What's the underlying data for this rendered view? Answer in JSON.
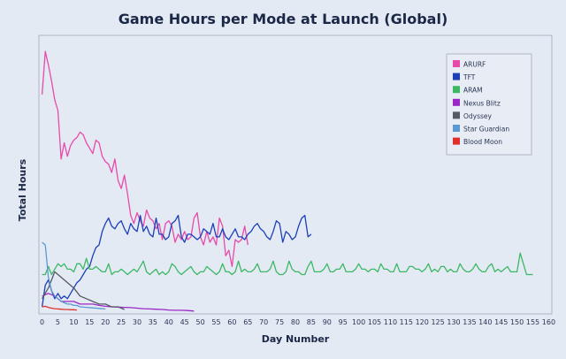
{
  "chart_data": {
    "type": "line",
    "title": "Game Hours per Mode at Launch (Global)",
    "xlabel": "Day Number",
    "ylabel": "Total Hours",
    "xlim": [
      -1,
      161
    ],
    "ylim": [
      0,
      100
    ],
    "y_ticks_visible": false,
    "grid": false,
    "legend_position": "top-right",
    "x_ticks": [
      "0",
      "5",
      "10",
      "15",
      "20",
      "25",
      "30",
      "35",
      "40",
      "45",
      "50",
      "55",
      "60",
      "65",
      "70",
      "75",
      "80",
      "85",
      "90",
      "95",
      "100",
      "105",
      "110",
      "115",
      "120",
      "125",
      "130",
      "135",
      "140",
      "145",
      "150",
      "155",
      "160"
    ],
    "series": [
      {
        "name": "ARURF",
        "color": "#e84aa9",
        "x": [
          0,
          1,
          2,
          3,
          4,
          5,
          6,
          7,
          8,
          9,
          10,
          11,
          12,
          13,
          14,
          15,
          16,
          17,
          18,
          19,
          20,
          21,
          22,
          23,
          24,
          25,
          26,
          27,
          28,
          29,
          30,
          31,
          32,
          33,
          34,
          35,
          36,
          37,
          38,
          39,
          40,
          41,
          42,
          43,
          44,
          45,
          46,
          47,
          48,
          49,
          50,
          51,
          52,
          53,
          54,
          55,
          56,
          57,
          58,
          59,
          60,
          61,
          62,
          63,
          64,
          65
        ],
        "y": [
          80,
          96,
          91,
          85,
          78,
          74,
          56,
          62,
          57,
          61,
          63,
          64,
          66,
          65,
          62,
          60,
          58,
          63,
          62,
          57,
          55,
          54,
          51,
          56,
          48,
          45,
          50,
          43,
          35,
          32,
          36,
          33,
          31,
          37,
          34,
          33,
          30,
          32,
          26,
          32,
          33,
          31,
          25,
          28,
          26,
          29,
          26,
          27,
          34,
          36,
          27,
          24,
          29,
          25,
          27,
          24,
          34,
          31,
          20,
          22,
          16,
          26,
          25,
          26,
          31,
          24
        ]
      },
      {
        "name": "TFT",
        "color": "#1c3fb8",
        "x": [
          0,
          1,
          2,
          3,
          4,
          5,
          6,
          7,
          8,
          9,
          10,
          11,
          12,
          13,
          14,
          15,
          16,
          17,
          18,
          19,
          20,
          21,
          22,
          23,
          24,
          25,
          26,
          27,
          28,
          29,
          30,
          31,
          32,
          33,
          34,
          35,
          36,
          37,
          38,
          39,
          40,
          41,
          42,
          43,
          44,
          45,
          46,
          47,
          48,
          49,
          50,
          51,
          52,
          53,
          54,
          55,
          56,
          57,
          58,
          59,
          60,
          61,
          62,
          63,
          64,
          65,
          66,
          67,
          68,
          69,
          70,
          71,
          72,
          73,
          74,
          75,
          76,
          77,
          78,
          79,
          80,
          81,
          82,
          83,
          84,
          85
        ],
        "y": [
          1,
          9,
          11,
          7,
          4,
          6,
          4,
          5,
          4,
          6,
          8,
          10,
          11,
          13,
          15,
          16,
          20,
          23,
          24,
          29,
          32,
          34,
          31,
          30,
          32,
          33,
          30,
          28,
          32,
          30,
          29,
          35,
          29,
          31,
          28,
          27,
          34,
          28,
          28,
          26,
          27,
          32,
          33,
          35,
          27,
          25,
          28,
          28,
          27,
          26,
          27,
          30,
          29,
          28,
          32,
          27,
          27,
          30,
          27,
          26,
          28,
          30,
          27,
          27,
          26,
          28,
          29,
          31,
          32,
          30,
          29,
          27,
          26,
          29,
          33,
          32,
          25,
          29,
          28,
          26,
          27,
          31,
          34,
          35,
          27,
          28
        ]
      },
      {
        "name": "ARAM",
        "color": "#3cb865",
        "x": [
          0,
          1,
          2,
          3,
          4,
          5,
          6,
          7,
          8,
          9,
          10,
          11,
          12,
          13,
          14,
          15,
          16,
          17,
          18,
          19,
          20,
          21,
          22,
          23,
          24,
          25,
          26,
          27,
          28,
          29,
          30,
          31,
          32,
          33,
          34,
          35,
          36,
          37,
          38,
          39,
          40,
          41,
          42,
          43,
          44,
          45,
          46,
          47,
          48,
          49,
          50,
          51,
          52,
          53,
          54,
          55,
          56,
          57,
          58,
          59,
          60,
          61,
          62,
          63,
          64,
          65,
          66,
          67,
          68,
          69,
          70,
          71,
          72,
          73,
          74,
          75,
          76,
          77,
          78,
          79,
          80,
          81,
          82,
          83,
          84,
          85,
          86,
          87,
          88,
          89,
          90,
          91,
          92,
          93,
          94,
          95,
          96,
          97,
          98,
          99,
          100,
          101,
          102,
          103,
          104,
          105,
          106,
          107,
          108,
          109,
          110,
          111,
          112,
          113,
          114,
          115,
          116,
          117,
          118,
          119,
          120,
          121,
          122,
          123,
          124,
          125,
          126,
          127,
          128,
          129,
          130,
          131,
          132,
          133,
          134,
          135,
          136,
          137,
          138,
          139,
          140,
          141,
          142,
          143,
          144,
          145,
          146,
          147,
          148,
          149,
          150,
          151,
          152,
          153,
          154,
          155
        ],
        "y": [
          13,
          13,
          16,
          13,
          15,
          17,
          16,
          17,
          15,
          15,
          14,
          17,
          17,
          15,
          19,
          15,
          15,
          16,
          15,
          14,
          14,
          17,
          13,
          14,
          14,
          15,
          14,
          13,
          14,
          15,
          14,
          16,
          18,
          14,
          13,
          14,
          15,
          13,
          14,
          13,
          14,
          17,
          16,
          14,
          13,
          14,
          15,
          16,
          14,
          13,
          14,
          14,
          16,
          15,
          14,
          13,
          14,
          17,
          14,
          14,
          13,
          14,
          18,
          14,
          15,
          14,
          14,
          15,
          17,
          14,
          14,
          14,
          15,
          18,
          14,
          13,
          13,
          14,
          18,
          15,
          14,
          14,
          13,
          13,
          16,
          18,
          14,
          14,
          14,
          15,
          17,
          14,
          14,
          15,
          15,
          17,
          14,
          14,
          14,
          15,
          17,
          15,
          15,
          14,
          15,
          15,
          14,
          17,
          15,
          15,
          14,
          14,
          17,
          14,
          14,
          14,
          16,
          16,
          15,
          15,
          14,
          15,
          17,
          14,
          15,
          14,
          16,
          16,
          14,
          15,
          14,
          14,
          17,
          15,
          14,
          14,
          15,
          17,
          15,
          14,
          14,
          16,
          17,
          14,
          15,
          14,
          15,
          16,
          14,
          14,
          14,
          21,
          17,
          13,
          13,
          13
        ]
      },
      {
        "name": "Nexus Blitz",
        "color": "#9b27c7",
        "x": [
          0,
          2,
          4,
          6,
          8,
          10,
          12,
          14,
          16,
          18,
          20,
          22,
          24,
          26,
          28,
          30,
          32,
          34,
          36,
          38,
          40,
          42,
          44,
          46,
          48
        ],
        "y": [
          5,
          6,
          5,
          3,
          3,
          3,
          2,
          2,
          2,
          1.5,
          1.2,
          1,
          0.9,
          0.8,
          0.7,
          0.5,
          0.3,
          0.2,
          0.1,
          0,
          -0.2,
          -0.3,
          -0.3,
          -0.4,
          -0.6
        ]
      },
      {
        "name": "Odyssey",
        "color": "#555a66",
        "x": [
          0,
          2,
          4,
          6,
          8,
          10,
          12,
          14,
          16,
          18,
          20,
          22,
          24,
          26
        ],
        "y": [
          4,
          8,
          14,
          12,
          10,
          8,
          5,
          4,
          3,
          2,
          2,
          1,
          1,
          0
        ]
      },
      {
        "name": "Star Guardian",
        "color": "#5a99d1",
        "x": [
          0,
          1,
          2,
          3,
          4,
          5,
          6,
          7,
          8,
          9,
          10,
          11,
          12,
          14,
          16,
          18,
          20
        ],
        "y": [
          25,
          24,
          12,
          7,
          5,
          4,
          3,
          2.5,
          2,
          2,
          1.5,
          1.5,
          1,
          0.8,
          0.6,
          0.4,
          0.2
        ]
      },
      {
        "name": "Blood Moon",
        "color": "#e0302e",
        "x": [
          0,
          1,
          2,
          3,
          4,
          5,
          6,
          7,
          8,
          9,
          10,
          11
        ],
        "y": [
          1,
          1.2,
          0.8,
          0.5,
          0.3,
          0.2,
          0.1,
          0,
          0,
          -0.1,
          -0.1,
          -0.2
        ]
      }
    ]
  }
}
